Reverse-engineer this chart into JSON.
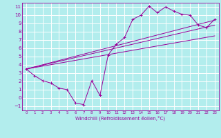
{
  "xlabel": "Windchill (Refroidissement éolien,°C)",
  "xlim": [
    -0.5,
    23.5
  ],
  "ylim": [
    -1.5,
    11.5
  ],
  "xticks": [
    0,
    1,
    2,
    3,
    4,
    5,
    6,
    7,
    8,
    9,
    10,
    11,
    12,
    13,
    14,
    15,
    16,
    17,
    18,
    19,
    20,
    21,
    22,
    23
  ],
  "yticks": [
    -1,
    0,
    1,
    2,
    3,
    4,
    5,
    6,
    7,
    8,
    9,
    10,
    11
  ],
  "bg_color": "#b2eded",
  "grid_color": "#ffffff",
  "line_color": "#990099",
  "line1_x": [
    0,
    1,
    2,
    3,
    4,
    5,
    6,
    7,
    8,
    9,
    10,
    11,
    12,
    13,
    14,
    15,
    16,
    17,
    18,
    19,
    20,
    21,
    22,
    23
  ],
  "line1_y": [
    3.5,
    2.7,
    2.1,
    1.8,
    1.2,
    1.0,
    -0.6,
    -0.8,
    2.1,
    0.3,
    5.2,
    6.5,
    7.3,
    9.5,
    10.0,
    11.1,
    10.3,
    11.0,
    10.5,
    10.1,
    10.0,
    8.8,
    8.5,
    9.5
  ],
  "line2_x": [
    0,
    23
  ],
  "line2_y": [
    3.5,
    9.4
  ],
  "line3_x": [
    0,
    23
  ],
  "line3_y": [
    3.5,
    8.8
  ],
  "line4_x": [
    0,
    23
  ],
  "line4_y": [
    3.5,
    7.5
  ]
}
